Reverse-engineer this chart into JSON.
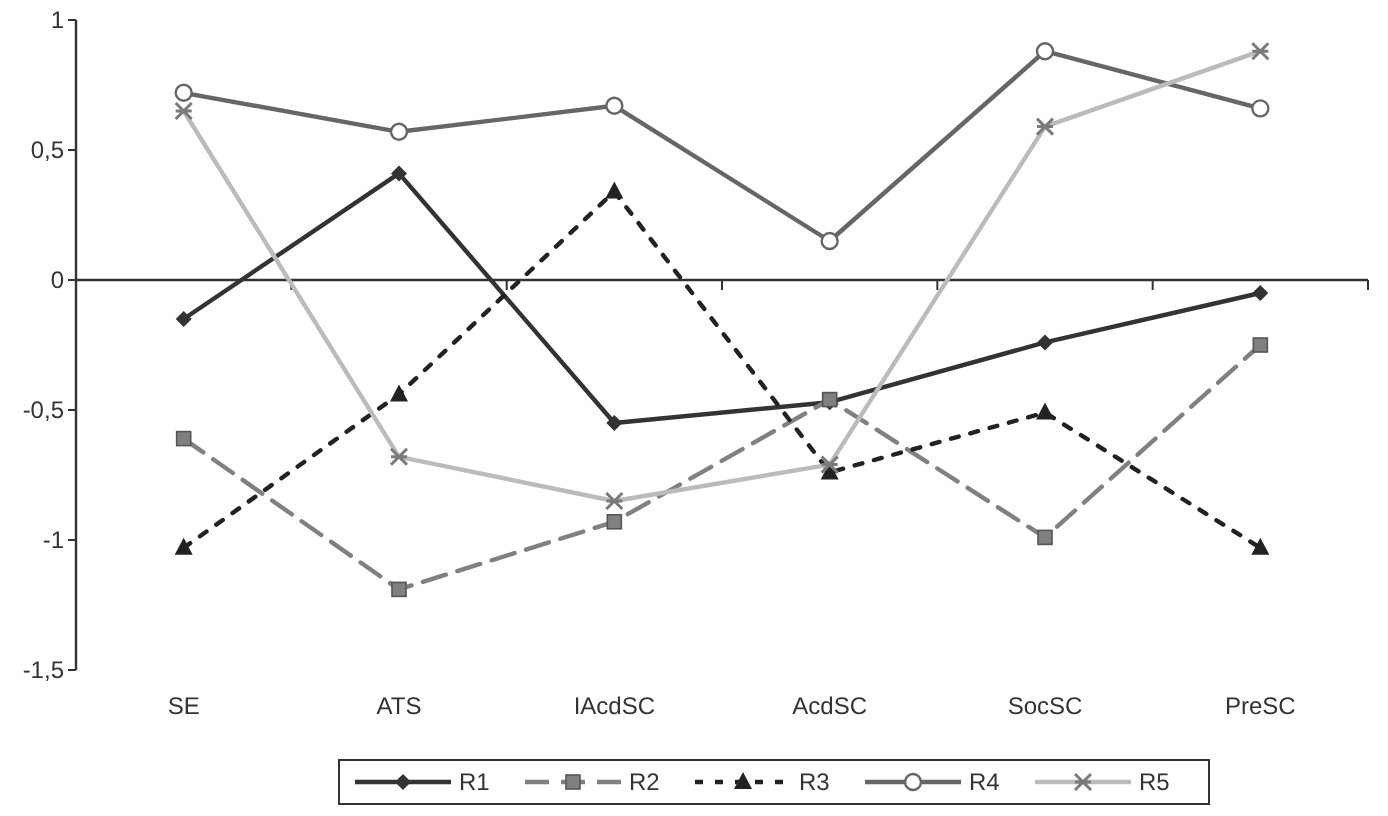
{
  "chart_data": {
    "type": "line",
    "categories": [
      "SE",
      "ATS",
      "IAcdSC",
      "AcdSC",
      "SocSC",
      "PreSC"
    ],
    "series": [
      {
        "name": "R1",
        "color": "#333333",
        "marker": "diamond",
        "line_style": "solid",
        "values": [
          -0.15,
          0.41,
          -0.55,
          -0.47,
          -0.24,
          -0.05
        ]
      },
      {
        "name": "R2",
        "color": "#808080",
        "marker": "square",
        "line_style": "dashed",
        "values": [
          -0.61,
          -1.19,
          -0.93,
          -0.46,
          -0.99,
          -0.25
        ]
      },
      {
        "name": "R3",
        "color": "#222222",
        "marker": "triangle",
        "line_style": "dotted",
        "values": [
          -1.03,
          -0.44,
          0.34,
          -0.74,
          -0.51,
          -1.03
        ]
      },
      {
        "name": "R4",
        "color": "#666666",
        "marker": "circle",
        "line_style": "solid",
        "values": [
          0.72,
          0.57,
          0.67,
          0.15,
          0.88,
          0.66
        ]
      },
      {
        "name": "R5",
        "color": "#bbbbbb",
        "marker": "cross",
        "line_style": "solid",
        "values": [
          0.65,
          -0.68,
          -0.85,
          -0.71,
          0.59,
          0.88
        ]
      }
    ],
    "ylim": [
      -1.5,
      1
    ],
    "yticks": [
      {
        "value": -1.5,
        "label": "-1,5"
      },
      -1,
      {
        "value": -0.5,
        "label": "-0,5"
      },
      0,
      {
        "value": 0.5,
        "label": "0,5"
      },
      1
    ],
    "legend": "bottom"
  }
}
